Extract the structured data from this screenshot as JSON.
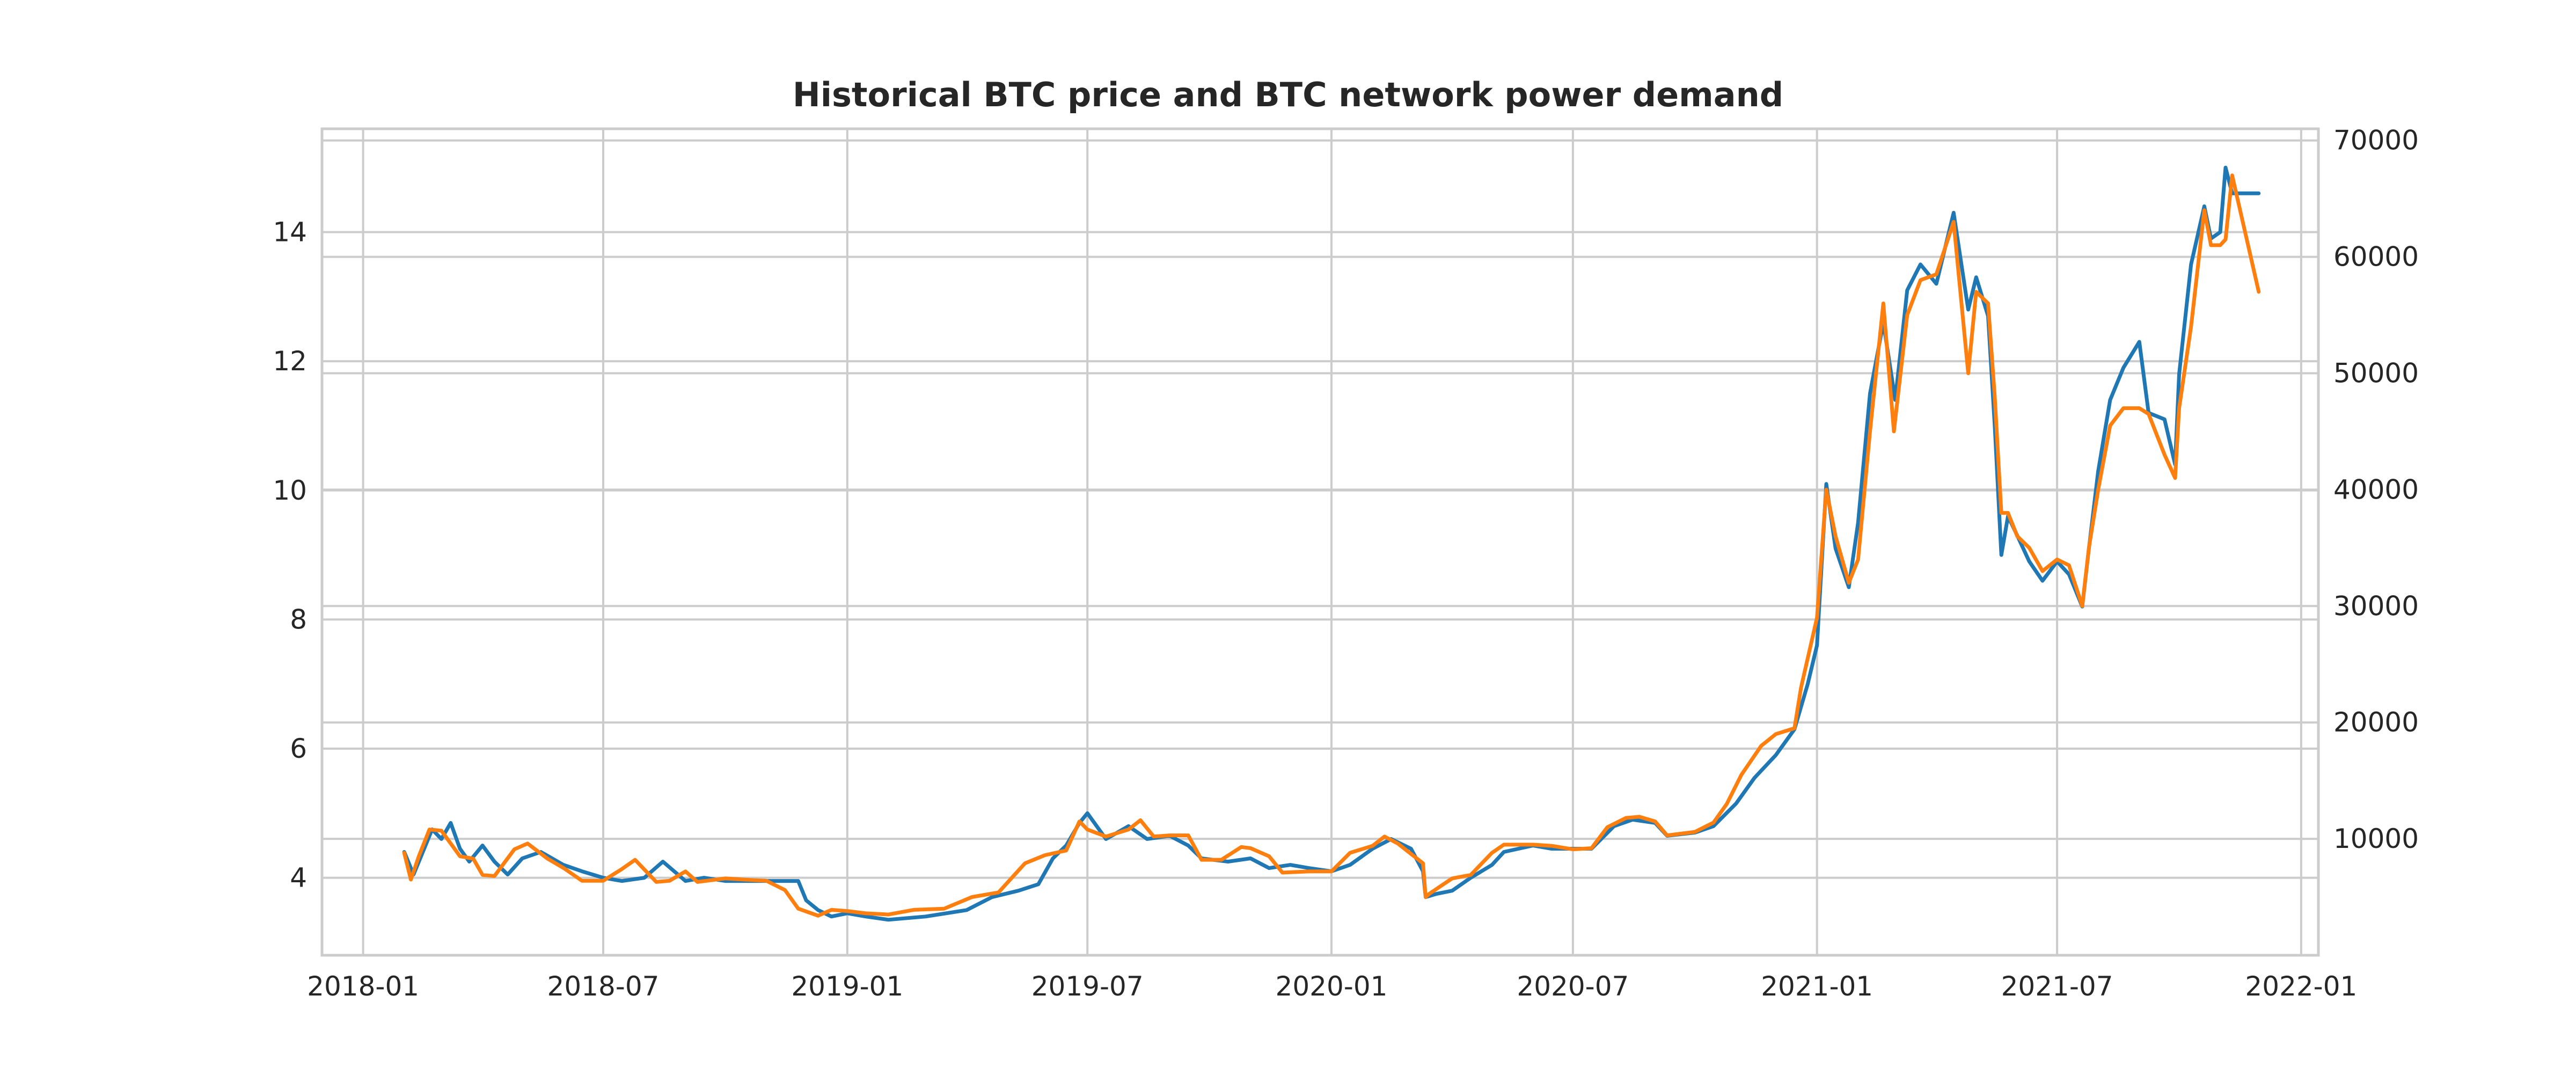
{
  "chart_data": {
    "type": "line",
    "title": "Historical BTC price and BTC network power demand",
    "xlabel": "",
    "ylabel_left": "",
    "ylabel_right": "",
    "x_ticks": [
      "2018-01",
      "2018-07",
      "2019-01",
      "2019-07",
      "2020-01",
      "2020-07",
      "2021-01",
      "2021-07",
      "2022-01"
    ],
    "xlim": [
      "2017-12-01",
      "2022-01-14"
    ],
    "y_left_ticks": [
      4,
      6,
      8,
      10,
      12,
      14
    ],
    "ylim_left": [
      2.8,
      15.6
    ],
    "y_right_ticks": [
      10000,
      20000,
      30000,
      40000,
      50000,
      60000,
      70000
    ],
    "ylim_right": [
      0,
      71000
    ],
    "grid": true,
    "legend": "none",
    "colors": {
      "series_left": "#1f77b4",
      "series_right": "#ff7f0e",
      "grid": "#cccccc"
    },
    "series": [
      {
        "axis": "left",
        "color": "#1f77b4",
        "points": [
          [
            "2018-02-01",
            4.4
          ],
          [
            "2018-02-08",
            4.05
          ],
          [
            "2018-02-15",
            4.4
          ],
          [
            "2018-02-22",
            4.75
          ],
          [
            "2018-03-01",
            4.6
          ],
          [
            "2018-03-08",
            4.85
          ],
          [
            "2018-03-15",
            4.45
          ],
          [
            "2018-03-22",
            4.25
          ],
          [
            "2018-04-01",
            4.5
          ],
          [
            "2018-04-10",
            4.25
          ],
          [
            "2018-04-20",
            4.05
          ],
          [
            "2018-05-01",
            4.3
          ],
          [
            "2018-05-15",
            4.4
          ],
          [
            "2018-06-01",
            4.2
          ],
          [
            "2018-06-15",
            4.1
          ],
          [
            "2018-07-01",
            4.0
          ],
          [
            "2018-07-15",
            3.95
          ],
          [
            "2018-08-01",
            4.0
          ],
          [
            "2018-08-15",
            4.25
          ],
          [
            "2018-09-01",
            3.95
          ],
          [
            "2018-09-15",
            4.0
          ],
          [
            "2018-10-01",
            3.95
          ],
          [
            "2018-11-01",
            3.95
          ],
          [
            "2018-11-25",
            3.95
          ],
          [
            "2018-12-01",
            3.65
          ],
          [
            "2018-12-10",
            3.5
          ],
          [
            "2018-12-20",
            3.4
          ],
          [
            "2019-01-01",
            3.45
          ],
          [
            "2019-01-15",
            3.4
          ],
          [
            "2019-02-01",
            3.35
          ],
          [
            "2019-03-01",
            3.4
          ],
          [
            "2019-04-01",
            3.5
          ],
          [
            "2019-04-20",
            3.7
          ],
          [
            "2019-05-10",
            3.8
          ],
          [
            "2019-05-25",
            3.9
          ],
          [
            "2019-06-05",
            4.3
          ],
          [
            "2019-06-15",
            4.5
          ],
          [
            "2019-06-25",
            4.85
          ],
          [
            "2019-07-01",
            5.0
          ],
          [
            "2019-07-15",
            4.6
          ],
          [
            "2019-08-01",
            4.8
          ],
          [
            "2019-08-15",
            4.6
          ],
          [
            "2019-09-01",
            4.65
          ],
          [
            "2019-09-15",
            4.5
          ],
          [
            "2019-09-25",
            4.3
          ],
          [
            "2019-10-15",
            4.25
          ],
          [
            "2019-11-01",
            4.3
          ],
          [
            "2019-11-15",
            4.15
          ],
          [
            "2019-12-01",
            4.2
          ],
          [
            "2019-12-15",
            4.15
          ],
          [
            "2020-01-01",
            4.1
          ],
          [
            "2020-01-15",
            4.2
          ],
          [
            "2020-02-01",
            4.45
          ],
          [
            "2020-02-15",
            4.6
          ],
          [
            "2020-03-01",
            4.45
          ],
          [
            "2020-03-10",
            4.1
          ],
          [
            "2020-03-12",
            3.7
          ],
          [
            "2020-03-20",
            3.75
          ],
          [
            "2020-04-01",
            3.8
          ],
          [
            "2020-04-15",
            4.0
          ],
          [
            "2020-05-01",
            4.2
          ],
          [
            "2020-05-10",
            4.4
          ],
          [
            "2020-06-01",
            4.5
          ],
          [
            "2020-06-15",
            4.45
          ],
          [
            "2020-07-01",
            4.45
          ],
          [
            "2020-07-15",
            4.45
          ],
          [
            "2020-08-01",
            4.8
          ],
          [
            "2020-08-15",
            4.9
          ],
          [
            "2020-09-01",
            4.85
          ],
          [
            "2020-09-10",
            4.65
          ],
          [
            "2020-10-01",
            4.7
          ],
          [
            "2020-10-15",
            4.8
          ],
          [
            "2020-11-01",
            5.15
          ],
          [
            "2020-11-15",
            5.55
          ],
          [
            "2020-12-01",
            5.9
          ],
          [
            "2020-12-15",
            6.3
          ],
          [
            "2020-12-25",
            7.0
          ],
          [
            "2021-01-01",
            7.6
          ],
          [
            "2021-01-08",
            10.1
          ],
          [
            "2021-01-15",
            9.1
          ],
          [
            "2021-01-25",
            8.5
          ],
          [
            "2021-02-01",
            9.5
          ],
          [
            "2021-02-10",
            11.5
          ],
          [
            "2021-02-20",
            12.6
          ],
          [
            "2021-03-01",
            11.4
          ],
          [
            "2021-03-10",
            13.1
          ],
          [
            "2021-03-20",
            13.5
          ],
          [
            "2021-04-01",
            13.2
          ],
          [
            "2021-04-14",
            14.3
          ],
          [
            "2021-04-25",
            12.8
          ],
          [
            "2021-05-01",
            13.3
          ],
          [
            "2021-05-10",
            12.7
          ],
          [
            "2021-05-15",
            11.0
          ],
          [
            "2021-05-20",
            9.0
          ],
          [
            "2021-05-25",
            9.6
          ],
          [
            "2021-06-01",
            9.3
          ],
          [
            "2021-06-10",
            8.9
          ],
          [
            "2021-06-20",
            8.6
          ],
          [
            "2021-07-01",
            8.9
          ],
          [
            "2021-07-10",
            8.7
          ],
          [
            "2021-07-20",
            8.2
          ],
          [
            "2021-07-25",
            9.1
          ],
          [
            "2021-08-01",
            10.3
          ],
          [
            "2021-08-10",
            11.4
          ],
          [
            "2021-08-20",
            11.9
          ],
          [
            "2021-09-01",
            12.3
          ],
          [
            "2021-09-08",
            11.2
          ],
          [
            "2021-09-20",
            11.1
          ],
          [
            "2021-09-28",
            10.4
          ],
          [
            "2021-10-01",
            11.8
          ],
          [
            "2021-10-10",
            13.5
          ],
          [
            "2021-10-20",
            14.4
          ],
          [
            "2021-10-25",
            13.9
          ],
          [
            "2021-11-01",
            14.0
          ],
          [
            "2021-11-05",
            15.0
          ],
          [
            "2021-11-10",
            14.6
          ],
          [
            "2021-11-30",
            14.6
          ]
        ]
      },
      {
        "axis": "right",
        "color": "#ff7f0e",
        "points": [
          [
            "2018-02-01",
            8800
          ],
          [
            "2018-02-06",
            6500
          ],
          [
            "2018-02-12",
            8500
          ],
          [
            "2018-02-20",
            10800
          ],
          [
            "2018-03-01",
            10700
          ],
          [
            "2018-03-15",
            8500
          ],
          [
            "2018-03-25",
            8300
          ],
          [
            "2018-04-01",
            6900
          ],
          [
            "2018-04-10",
            6800
          ],
          [
            "2018-04-25",
            9100
          ],
          [
            "2018-05-05",
            9600
          ],
          [
            "2018-05-20",
            8300
          ],
          [
            "2018-06-01",
            7500
          ],
          [
            "2018-06-15",
            6400
          ],
          [
            "2018-07-01",
            6400
          ],
          [
            "2018-07-15",
            7400
          ],
          [
            "2018-07-25",
            8200
          ],
          [
            "2018-08-10",
            6300
          ],
          [
            "2018-08-20",
            6400
          ],
          [
            "2018-09-01",
            7200
          ],
          [
            "2018-09-10",
            6300
          ],
          [
            "2018-10-01",
            6600
          ],
          [
            "2018-10-15",
            6500
          ],
          [
            "2018-11-01",
            6400
          ],
          [
            "2018-11-15",
            5600
          ],
          [
            "2018-11-25",
            4000
          ],
          [
            "2018-12-10",
            3400
          ],
          [
            "2018-12-20",
            3900
          ],
          [
            "2019-01-01",
            3800
          ],
          [
            "2019-01-15",
            3600
          ],
          [
            "2019-02-01",
            3500
          ],
          [
            "2019-02-20",
            3900
          ],
          [
            "2019-03-15",
            4000
          ],
          [
            "2019-04-05",
            5000
          ],
          [
            "2019-04-25",
            5400
          ],
          [
            "2019-05-15",
            7900
          ],
          [
            "2019-05-30",
            8600
          ],
          [
            "2019-06-15",
            9000
          ],
          [
            "2019-06-25",
            11500
          ],
          [
            "2019-07-01",
            10800
          ],
          [
            "2019-07-15",
            10200
          ],
          [
            "2019-08-01",
            10800
          ],
          [
            "2019-08-10",
            11600
          ],
          [
            "2019-08-20",
            10200
          ],
          [
            "2019-09-01",
            10300
          ],
          [
            "2019-09-15",
            10300
          ],
          [
            "2019-09-25",
            8200
          ],
          [
            "2019-10-10",
            8200
          ],
          [
            "2019-10-25",
            9300
          ],
          [
            "2019-11-01",
            9200
          ],
          [
            "2019-11-15",
            8500
          ],
          [
            "2019-11-25",
            7100
          ],
          [
            "2019-12-15",
            7200
          ],
          [
            "2020-01-01",
            7200
          ],
          [
            "2020-01-15",
            8800
          ],
          [
            "2020-02-01",
            9400
          ],
          [
            "2020-02-10",
            10200
          ],
          [
            "2020-02-20",
            9600
          ],
          [
            "2020-03-01",
            8700
          ],
          [
            "2020-03-10",
            7900
          ],
          [
            "2020-03-12",
            5000
          ],
          [
            "2020-03-15",
            5300
          ],
          [
            "2020-04-01",
            6600
          ],
          [
            "2020-04-15",
            6900
          ],
          [
            "2020-05-01",
            8800
          ],
          [
            "2020-05-10",
            9500
          ],
          [
            "2020-06-01",
            9500
          ],
          [
            "2020-06-15",
            9400
          ],
          [
            "2020-07-01",
            9100
          ],
          [
            "2020-07-15",
            9200
          ],
          [
            "2020-07-27",
            11000
          ],
          [
            "2020-08-10",
            11800
          ],
          [
            "2020-08-20",
            11900
          ],
          [
            "2020-09-01",
            11500
          ],
          [
            "2020-09-10",
            10300
          ],
          [
            "2020-10-01",
            10600
          ],
          [
            "2020-10-15",
            11400
          ],
          [
            "2020-10-25",
            13000
          ],
          [
            "2020-11-05",
            15500
          ],
          [
            "2020-11-20",
            18000
          ],
          [
            "2020-12-01",
            19000
          ],
          [
            "2020-12-15",
            19500
          ],
          [
            "2020-12-20",
            23000
          ],
          [
            "2021-01-01",
            29000
          ],
          [
            "2021-01-08",
            40000
          ],
          [
            "2021-01-15",
            36000
          ],
          [
            "2021-01-25",
            32000
          ],
          [
            "2021-02-01",
            34000
          ],
          [
            "2021-02-10",
            45000
          ],
          [
            "2021-02-20",
            56000
          ],
          [
            "2021-02-28",
            45000
          ],
          [
            "2021-03-10",
            55000
          ],
          [
            "2021-03-20",
            58000
          ],
          [
            "2021-04-01",
            58500
          ],
          [
            "2021-04-14",
            63000
          ],
          [
            "2021-04-25",
            50000
          ],
          [
            "2021-05-01",
            57000
          ],
          [
            "2021-05-10",
            56000
          ],
          [
            "2021-05-15",
            48000
          ],
          [
            "2021-05-20",
            38000
          ],
          [
            "2021-05-25",
            38000
          ],
          [
            "2021-06-01",
            36000
          ],
          [
            "2021-06-10",
            35000
          ],
          [
            "2021-06-20",
            33000
          ],
          [
            "2021-07-01",
            34000
          ],
          [
            "2021-07-10",
            33500
          ],
          [
            "2021-07-20",
            30000
          ],
          [
            "2021-07-25",
            35000
          ],
          [
            "2021-08-01",
            40000
          ],
          [
            "2021-08-10",
            45500
          ],
          [
            "2021-08-20",
            47000
          ],
          [
            "2021-09-01",
            47000
          ],
          [
            "2021-09-08",
            46500
          ],
          [
            "2021-09-20",
            43000
          ],
          [
            "2021-09-28",
            41000
          ],
          [
            "2021-10-01",
            47000
          ],
          [
            "2021-10-10",
            54000
          ],
          [
            "2021-10-20",
            64000
          ],
          [
            "2021-10-25",
            61000
          ],
          [
            "2021-11-01",
            61000
          ],
          [
            "2021-11-05",
            61500
          ],
          [
            "2021-11-10",
            67000
          ],
          [
            "2021-11-30",
            57000
          ]
        ]
      }
    ]
  }
}
